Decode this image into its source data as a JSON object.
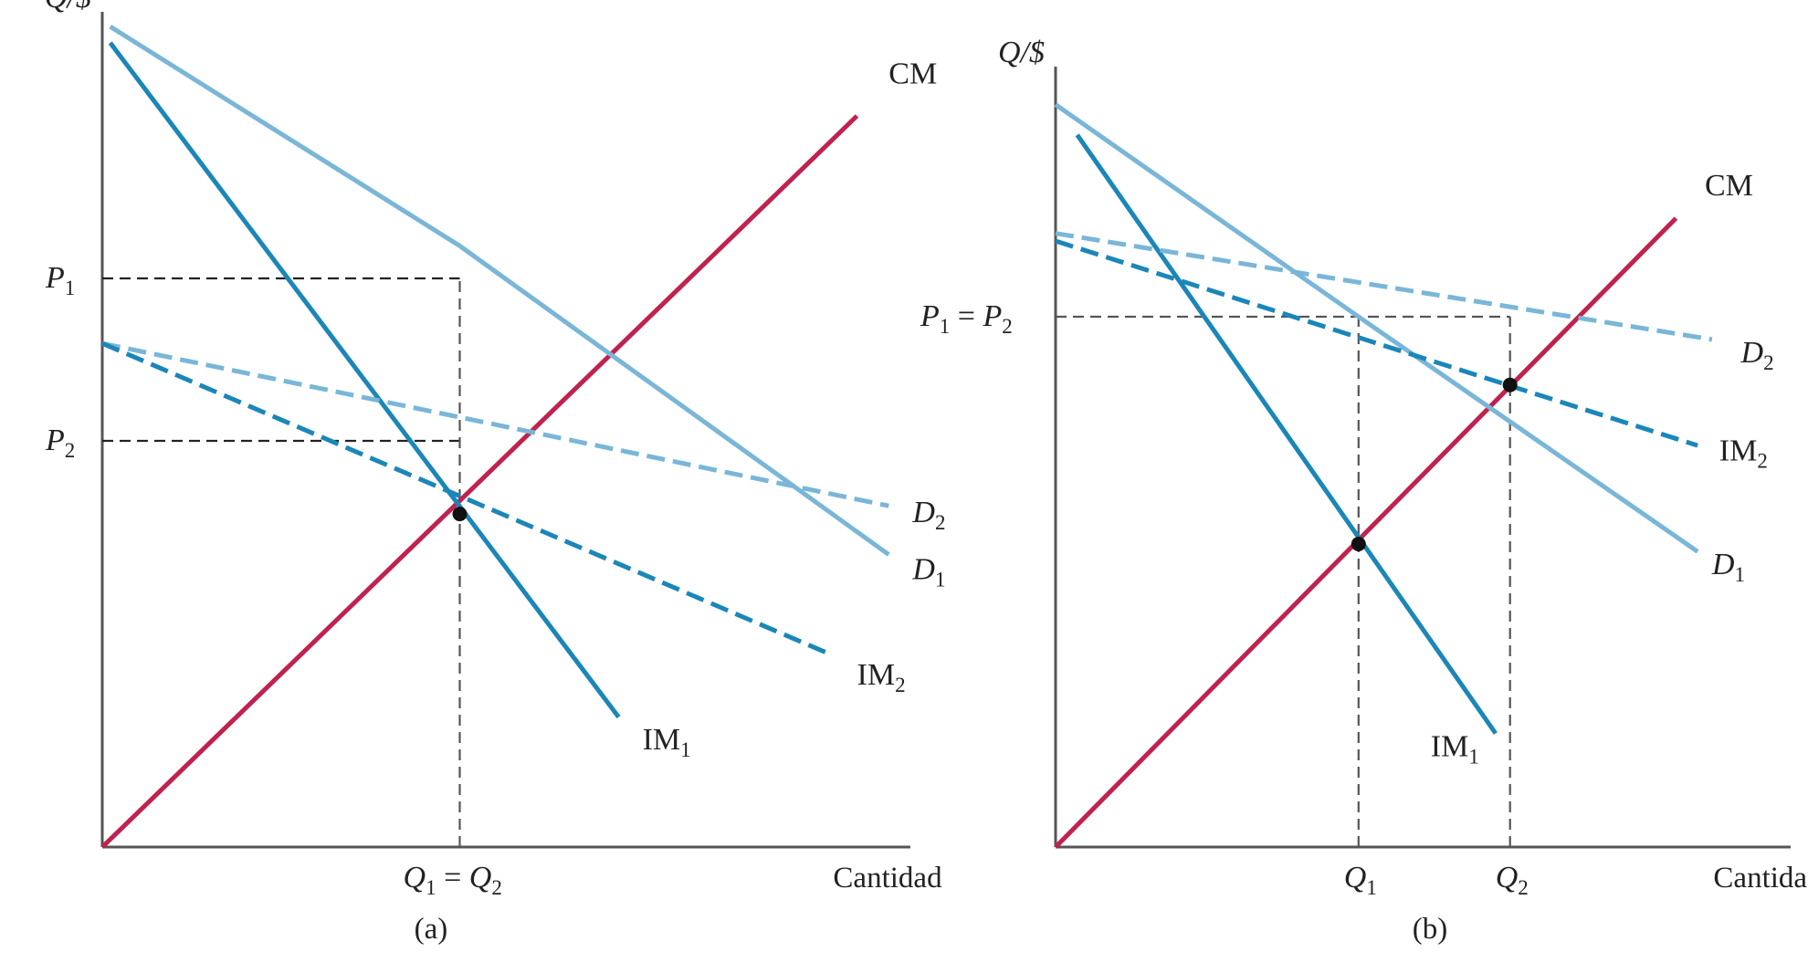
{
  "chart_data": [
    {
      "type": "line",
      "panel_label": "(a)",
      "y_axis_label": "Q/$",
      "x_axis_label": "Cantidad",
      "x_tick_label": {
        "main": "Q",
        "sub1": "1",
        "eq": " = ",
        "main2": "Q",
        "sub2": "2"
      },
      "y_tick_labels": [
        {
          "main": "P",
          "sub": "1",
          "y": 70
        },
        {
          "main": "P",
          "sub": "2",
          "y": 50
        }
      ],
      "xlim": [
        0,
        100
      ],
      "ylim": [
        0,
        100
      ],
      "guides": [
        {
          "from": [
            0,
            70
          ],
          "to": [
            45,
            70
          ],
          "color": "#222222"
        },
        {
          "from": [
            0,
            50
          ],
          "to": [
            45,
            50
          ],
          "color": "#222222"
        },
        {
          "from": [
            45,
            0
          ],
          "to": [
            45,
            70
          ],
          "color": "#555555"
        }
      ],
      "points": [
        {
          "x": 45,
          "y": 41
        }
      ],
      "series": [
        {
          "name": "CM",
          "sub": "",
          "color": "#c0224f",
          "style": "solid",
          "width": 5,
          "points": [
            [
              0,
              0
            ],
            [
              95,
              90
            ]
          ],
          "label_at": [
            99,
            94
          ]
        },
        {
          "name": "D",
          "sub": "1",
          "color": "#79b6d8",
          "style": "solid",
          "width": 5,
          "points": [
            [
              1,
              101
            ],
            [
              45,
              74
            ],
            [
              99,
              36
            ]
          ],
          "label_at": [
            102,
            33
          ],
          "italic": true
        },
        {
          "name": "IM",
          "sub": "1",
          "color": "#1b86b8",
          "style": "solid",
          "width": 5,
          "points": [
            [
              1,
              99
            ],
            [
              65,
              16
            ]
          ],
          "label_at": [
            68,
            12
          ]
        },
        {
          "name": "D",
          "sub": "2",
          "color": "#79b6d8",
          "style": "dashed",
          "width": 5,
          "points": [
            [
              0,
              62
            ],
            [
              99,
              42
            ]
          ],
          "label_at": [
            102,
            40
          ],
          "italic": true
        },
        {
          "name": "IM",
          "sub": "2",
          "color": "#1b86b8",
          "style": "dashed",
          "width": 5,
          "points": [
            [
              0,
              62
            ],
            [
              91,
              24
            ]
          ],
          "label_at": [
            95,
            20
          ]
        }
      ]
    },
    {
      "type": "line",
      "panel_label": "(b)",
      "y_axis_label": "Q/$",
      "x_axis_label": "Cantidad",
      "x_tick_labels": [
        {
          "main": "Q",
          "sub": "1",
          "x": 42
        },
        {
          "main": "Q",
          "sub": "2",
          "x": 63
        }
      ],
      "y_tick_label": {
        "main": "P",
        "sub1": "1",
        "eq": " = ",
        "main2": "P",
        "sub2": "2",
        "y": 70
      },
      "xlim": [
        0,
        100
      ],
      "ylim": [
        0,
        100
      ],
      "guides": [
        {
          "from": [
            0,
            70
          ],
          "to": [
            63,
            70
          ],
          "color": "#555555"
        },
        {
          "from": [
            42,
            0
          ],
          "to": [
            42,
            70
          ],
          "color": "#555555"
        },
        {
          "from": [
            63,
            0
          ],
          "to": [
            63,
            70
          ],
          "color": "#555555"
        }
      ],
      "points": [
        {
          "x": 42,
          "y": 40
        },
        {
          "x": 63,
          "y": 61
        }
      ],
      "series": [
        {
          "name": "CM",
          "sub": "",
          "color": "#c0224f",
          "style": "solid",
          "width": 5,
          "points": [
            [
              0,
              0
            ],
            [
              86,
              83
            ]
          ],
          "label_at": [
            90,
            86
          ]
        },
        {
          "name": "D",
          "sub": "1",
          "color": "#79b6d8",
          "style": "solid",
          "width": 5,
          "points": [
            [
              0,
              98
            ],
            [
              42,
              70
            ],
            [
              89,
              39
            ]
          ],
          "label_at": [
            91,
            36
          ],
          "italic": true
        },
        {
          "name": "IM",
          "sub": "1",
          "color": "#1b86b8",
          "style": "solid",
          "width": 5,
          "points": [
            [
              3,
              94
            ],
            [
              61,
              15
            ]
          ],
          "label_at": [
            52,
            12
          ]
        },
        {
          "name": "D",
          "sub": "2",
          "color": "#79b6d8",
          "style": "dashed",
          "width": 5,
          "points": [
            [
              0,
              81
            ],
            [
              91,
              67
            ]
          ],
          "label_at": [
            95,
            64
          ],
          "italic": true
        },
        {
          "name": "IM",
          "sub": "2",
          "color": "#1b86b8",
          "style": "dashed",
          "width": 5,
          "points": [
            [
              0,
              80
            ],
            [
              89,
              53
            ]
          ],
          "label_at": [
            92,
            51
          ]
        }
      ]
    }
  ]
}
